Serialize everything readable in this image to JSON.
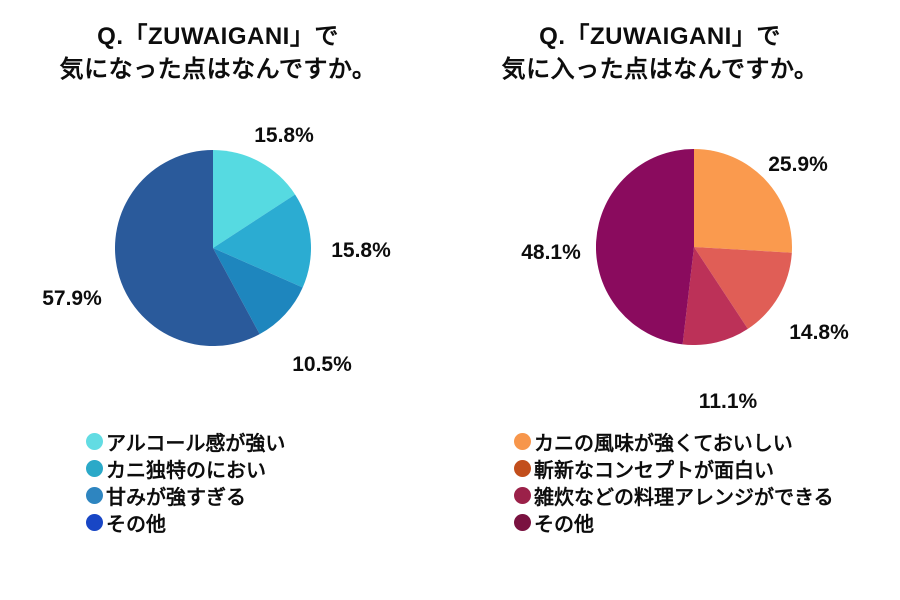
{
  "page": {
    "background": "#ffffff",
    "text_color": "#0d0d0d"
  },
  "chart_data": [
    {
      "type": "pie",
      "title_lines": [
        "Q.「ZUWAIGANI」で",
        "気になった点はなんですか。"
      ],
      "start_angle": "top",
      "direction": "clockwise",
      "legend_position": "bottom-left",
      "slices": [
        {
          "label": "アルコール感が強い",
          "value": 15.8,
          "pct_label": "15.8%",
          "slice_color": "#56DAE1",
          "legend_color": "#62DCE3"
        },
        {
          "label": "カニ独特のにおい",
          "value": 15.8,
          "pct_label": "15.8%",
          "slice_color": "#2BACD2",
          "legend_color": "#2BA9C8"
        },
        {
          "label": "甘みが強すぎる",
          "value": 10.5,
          "pct_label": "10.5%",
          "slice_color": "#1E86BE",
          "legend_color": "#2E85C0"
        },
        {
          "label": "その他",
          "value": 57.9,
          "pct_label": "57.9%",
          "slice_color": "#2A5A9B",
          "legend_color": "#1846C5"
        }
      ]
    },
    {
      "type": "pie",
      "title_lines": [
        "Q.「ZUWAIGANI」で",
        "気に入った点はなんですか。"
      ],
      "start_angle": "top",
      "direction": "clockwise",
      "legend_position": "bottom-left",
      "slices": [
        {
          "label": "カニの風味が強くておいしい",
          "value": 25.9,
          "pct_label": "25.9%",
          "slice_color": "#FA9A4E",
          "legend_color": "#F7964B"
        },
        {
          "label": "斬新なコンセプトが面白い",
          "value": 14.8,
          "pct_label": "14.8%",
          "slice_color": "#E05E56",
          "legend_color": "#C24E1C"
        },
        {
          "label": "雑炊などの料理アレンジができる",
          "value": 11.1,
          "pct_label": "11.1%",
          "slice_color": "#BC3158",
          "legend_color": "#9B2149"
        },
        {
          "label": "その他",
          "value": 48.1,
          "pct_label": "48.1%",
          "slice_color": "#8A0B5E",
          "legend_color": "#7A1240"
        }
      ]
    }
  ]
}
